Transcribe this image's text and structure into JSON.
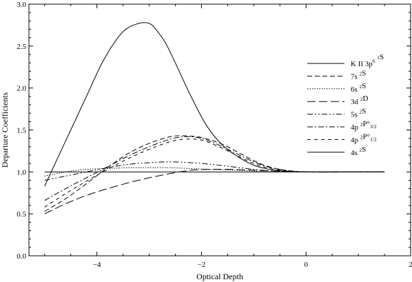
{
  "chart_data": {
    "type": "line",
    "xlabel": "Optical Depth",
    "ylabel": "Departure Coefficients",
    "xlim": [
      -5.3,
      2.0
    ],
    "ylim": [
      0.0,
      3.0
    ],
    "xticks": [
      -4,
      -2,
      0,
      2
    ],
    "yticks": [
      0.0,
      0.5,
      1.0,
      1.5,
      2.0,
      2.5,
      3.0
    ],
    "xtick_labels": [
      "−4",
      "−2",
      "0",
      "2"
    ],
    "ytick_labels": [
      "0.0",
      "0.5",
      "1.0",
      "1.5",
      "2.0",
      "2.5",
      "3.0"
    ],
    "grid": false,
    "legend_position": "right",
    "series": [
      {
        "name": "K II 3p6 1S",
        "label_parts": [
          [
            "K II  3p",
            "n"
          ],
          [
            "6",
            "sup"
          ],
          [
            " ",
            "n"
          ],
          [
            "1",
            "sup"
          ],
          [
            "S",
            "n"
          ]
        ],
        "dash": "",
        "x": [
          -5.0,
          -4.8,
          -4.5,
          -4.2,
          -3.9,
          -3.6,
          -3.4,
          -3.2,
          -3.1,
          -3.0,
          -2.9,
          -2.7,
          -2.5,
          -2.2,
          -1.9,
          -1.6,
          -1.3,
          -1.0,
          -0.7,
          -0.4,
          0.0,
          0.5,
          1.0,
          1.5
        ],
        "y": [
          0.83,
          1.1,
          1.5,
          1.9,
          2.3,
          2.6,
          2.72,
          2.77,
          2.78,
          2.77,
          2.72,
          2.55,
          2.3,
          1.9,
          1.55,
          1.32,
          1.18,
          1.08,
          1.03,
          1.01,
          1.0,
          1.0,
          1.0,
          1.0
        ]
      },
      {
        "name": "7s 2S",
        "label_parts": [
          [
            "7s ",
            "n"
          ],
          [
            "2",
            "sup"
          ],
          [
            "S",
            "n"
          ]
        ],
        "dash": "7,4",
        "x": [
          -5.0,
          -4.6,
          -4.2,
          -3.8,
          -3.4,
          -3.0,
          -2.6,
          -2.3,
          -2.0,
          -1.6,
          -1.2,
          -0.8,
          -0.4,
          0.0,
          0.5,
          1.0,
          1.5
        ],
        "y": [
          0.53,
          0.68,
          0.86,
          1.05,
          1.22,
          1.34,
          1.42,
          1.43,
          1.41,
          1.33,
          1.2,
          1.08,
          1.02,
          1.0,
          1.0,
          1.0,
          1.0
        ]
      },
      {
        "name": "6s 2S",
        "label_parts": [
          [
            "6s ",
            "n"
          ],
          [
            "2",
            "sup"
          ],
          [
            "S",
            "n"
          ]
        ],
        "dash": "1.5,2",
        "x": [
          -5.0,
          -4.6,
          -4.2,
          -3.8,
          -3.4,
          -3.0,
          -2.6,
          -2.2,
          -1.8,
          -1.4,
          -1.0,
          -0.6,
          0.0,
          1.0,
          1.5
        ],
        "y": [
          0.95,
          1.0,
          1.03,
          1.04,
          1.05,
          1.05,
          1.05,
          1.04,
          1.03,
          1.02,
          1.01,
          1.0,
          1.0,
          1.0,
          1.0
        ]
      },
      {
        "name": "3d 2D",
        "label_parts": [
          [
            "3d ",
            "n"
          ],
          [
            "2",
            "sup"
          ],
          [
            "D",
            "n"
          ]
        ],
        "dash": "12,5",
        "x": [
          -5.0,
          -4.6,
          -4.2,
          -3.8,
          -3.4,
          -3.0,
          -2.6,
          -2.2,
          -1.8,
          -1.4,
          -1.0,
          -0.6,
          0.0,
          1.0,
          1.5
        ],
        "y": [
          0.5,
          0.62,
          0.72,
          0.8,
          0.87,
          0.93,
          0.98,
          1.02,
          1.03,
          1.03,
          1.02,
          1.01,
          1.0,
          1.0,
          1.0
        ]
      },
      {
        "name": "5s 2S",
        "label_parts": [
          [
            "5s ",
            "n"
          ],
          [
            "2",
            "sup"
          ],
          [
            "S",
            "n"
          ]
        ],
        "dash": "8,3,2,3,2,3",
        "x": [
          -5.0,
          -4.6,
          -4.2,
          -3.8,
          -3.4,
          -3.0,
          -2.6,
          -2.2,
          -1.8,
          -1.4,
          -1.0,
          -0.6,
          0.0,
          1.0,
          1.5
        ],
        "y": [
          0.9,
          0.95,
          1.0,
          1.05,
          1.09,
          1.11,
          1.12,
          1.11,
          1.09,
          1.06,
          1.03,
          1.01,
          1.0,
          1.0,
          1.0
        ]
      },
      {
        "name": "4p 2P°3/2",
        "label_parts": [
          [
            "4p ",
            "n"
          ],
          [
            "2",
            "sup"
          ],
          [
            "P°",
            "n"
          ],
          [
            "3/2",
            "sub"
          ]
        ],
        "dash": "8,3,2,3",
        "x": [
          -5.0,
          -4.6,
          -4.2,
          -3.8,
          -3.4,
          -3.0,
          -2.6,
          -2.3,
          -2.0,
          -1.7,
          -1.4,
          -1.0,
          -0.6,
          0.0,
          1.0,
          1.5
        ],
        "y": [
          0.66,
          0.8,
          0.93,
          1.06,
          1.19,
          1.3,
          1.39,
          1.42,
          1.4,
          1.33,
          1.24,
          1.12,
          1.04,
          1.0,
          1.0,
          1.0
        ]
      },
      {
        "name": "4p 2P°1/2",
        "label_parts": [
          [
            "4p ",
            "n"
          ],
          [
            "2",
            "sup"
          ],
          [
            "P°",
            "n"
          ],
          [
            "1/2",
            "sub"
          ]
        ],
        "dash": "5,5",
        "x": [
          -5.0,
          -4.6,
          -4.2,
          -3.8,
          -3.4,
          -3.0,
          -2.6,
          -2.3,
          -2.0,
          -1.7,
          -1.4,
          -1.0,
          -0.6,
          0.0,
          1.0,
          1.5
        ],
        "y": [
          0.58,
          0.74,
          0.89,
          1.03,
          1.16,
          1.27,
          1.36,
          1.39,
          1.38,
          1.31,
          1.22,
          1.1,
          1.03,
          1.0,
          1.0,
          1.0
        ]
      },
      {
        "name": "4s 2S",
        "label_parts": [
          [
            "4s ",
            "n"
          ],
          [
            "2",
            "sup"
          ],
          [
            "S",
            "n"
          ]
        ],
        "dash": "",
        "x": [
          -5.0,
          -4.0,
          -3.0,
          -2.0,
          -1.0,
          0.0,
          1.0,
          1.5
        ],
        "y": [
          1.0,
          1.0,
          1.0,
          1.0,
          1.0,
          1.0,
          1.0,
          1.0
        ]
      }
    ]
  }
}
